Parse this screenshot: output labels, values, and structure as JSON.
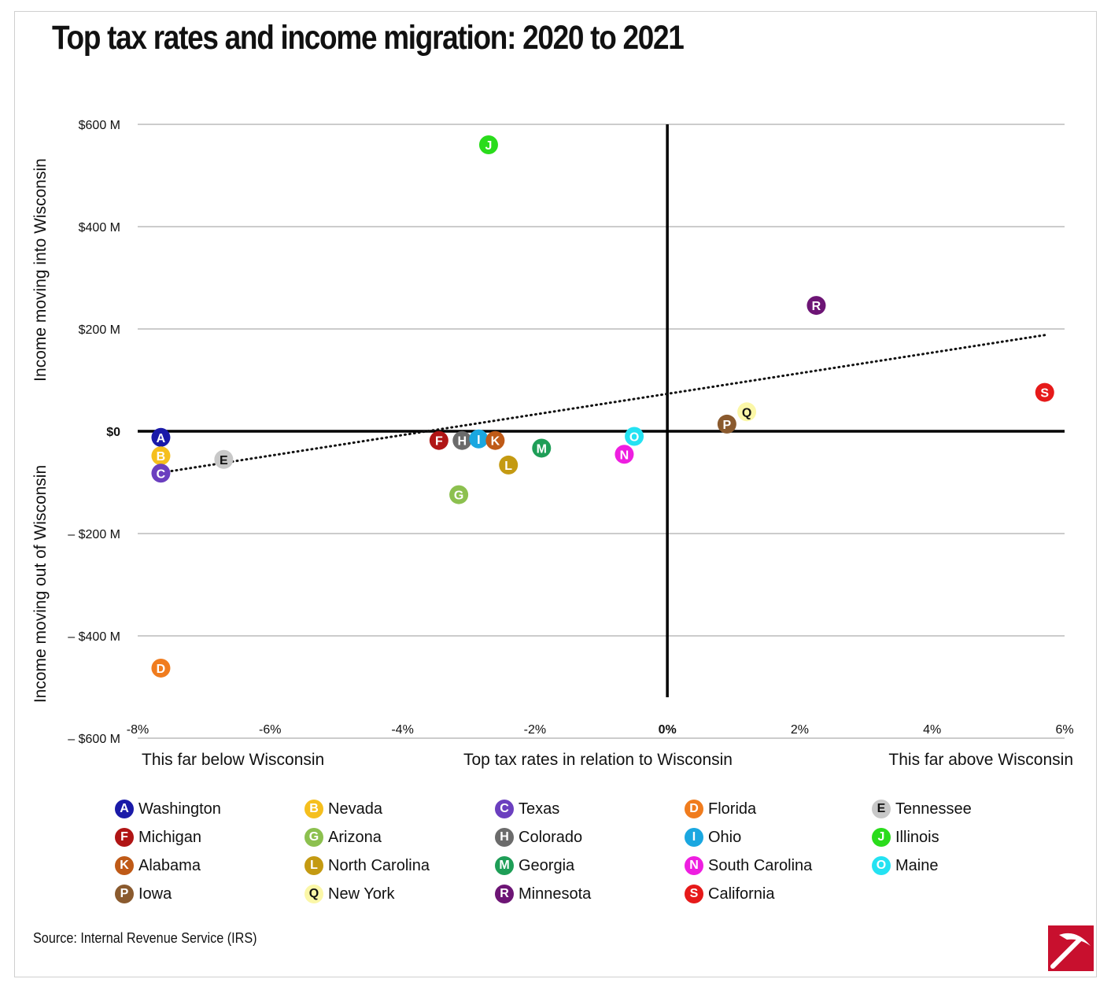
{
  "title": "Top tax rates and income migration: 2020 to 2021",
  "source": "Source: Internal Revenue Service (IRS)",
  "logo_icon": "pickaxe-logo-icon",
  "colors": {
    "accent_logo": "#c8102e",
    "grid": "#bbbbbb",
    "axis": "#000000"
  },
  "chart_data": {
    "type": "scatter",
    "xlabel": "Top tax rates in relation to Wisconsin",
    "xlabel_left": "This far below Wisconsin",
    "xlabel_right": "This far above Wisconsin",
    "ylabel_top": "Income moving into Wisconsin",
    "ylabel_bottom": "Income moving out of Wisconsin",
    "xlim": [
      -8,
      6
    ],
    "ylim": [
      -600,
      600
    ],
    "x_ticks": [
      -8,
      -6,
      -4,
      -2,
      0,
      2,
      4,
      6
    ],
    "x_tick_labels": [
      "-8%",
      "-6%",
      "-4%",
      "-2%",
      "0%",
      "2%",
      "4%",
      "6%"
    ],
    "y_ticks": [
      600,
      400,
      200,
      0,
      -200,
      -400,
      -600
    ],
    "y_tick_labels": [
      "$600 M",
      "$400 M",
      "$200 M",
      "$0",
      "– $200 M",
      "– $400 M",
      "– $600 M"
    ],
    "grid": "horizontal",
    "trendline": {
      "style": "dotted",
      "x": [
        -7.7,
        5.7
      ],
      "y": [
        -82,
        188
      ]
    },
    "points": [
      {
        "letter": "A",
        "state": "Washington",
        "x": -7.65,
        "y": -12,
        "color": "#1a1aa8"
      },
      {
        "letter": "B",
        "state": "Nevada",
        "x": -7.65,
        "y": -48,
        "color": "#f5bf1e"
      },
      {
        "letter": "C",
        "state": "Texas",
        "x": -7.65,
        "y": -82,
        "color": "#6b3fbf"
      },
      {
        "letter": "D",
        "state": "Florida",
        "x": -7.65,
        "y": -463,
        "color": "#f07c1e"
      },
      {
        "letter": "E",
        "state": "Tennessee",
        "x": -6.7,
        "y": -55,
        "color": "#c8c8c8"
      },
      {
        "letter": "F",
        "state": "Michigan",
        "x": -3.45,
        "y": -18,
        "color": "#b01515"
      },
      {
        "letter": "G",
        "state": "Arizona",
        "x": -3.15,
        "y": -124,
        "color": "#8cc04f"
      },
      {
        "letter": "H",
        "state": "Colorado",
        "x": -3.1,
        "y": -18,
        "color": "#6b6b6b"
      },
      {
        "letter": "I",
        "state": "Ohio",
        "x": -2.85,
        "y": -15,
        "color": "#1aa7e0"
      },
      {
        "letter": "J",
        "state": "Illinois",
        "x": -2.7,
        "y": 560,
        "color": "#2adc1c"
      },
      {
        "letter": "K",
        "state": "Alabama",
        "x": -2.6,
        "y": -18,
        "color": "#bf5a17"
      },
      {
        "letter": "L",
        "state": "North Carolina",
        "x": -2.4,
        "y": -66,
        "color": "#c49a12"
      },
      {
        "letter": "M",
        "state": "Georgia",
        "x": -1.9,
        "y": -33,
        "color": "#1e9e57"
      },
      {
        "letter": "N",
        "state": "South Carolina",
        "x": -0.65,
        "y": -45,
        "color": "#ee1ee0"
      },
      {
        "letter": "O",
        "state": "Maine",
        "x": -0.5,
        "y": -10,
        "color": "#24e2f2"
      },
      {
        "letter": "P",
        "state": "Iowa",
        "x": 0.9,
        "y": 14,
        "color": "#8a5a2e"
      },
      {
        "letter": "Q",
        "state": "New York",
        "x": 1.2,
        "y": 38,
        "color": "#fbf7a8"
      },
      {
        "letter": "R",
        "state": "Minnesota",
        "x": 2.25,
        "y": 246,
        "color": "#6d1575"
      },
      {
        "letter": "S",
        "state": "California",
        "x": 5.7,
        "y": 76,
        "color": "#e61a1a"
      }
    ]
  },
  "legend": [
    {
      "letter": "A",
      "state": "Washington",
      "color": "#1a1aa8"
    },
    {
      "letter": "B",
      "state": "Nevada",
      "color": "#f5bf1e"
    },
    {
      "letter": "C",
      "state": "Texas",
      "color": "#6b3fbf"
    },
    {
      "letter": "D",
      "state": "Florida",
      "color": "#f07c1e"
    },
    {
      "letter": "E",
      "state": "Tennessee",
      "color": "#c8c8c8"
    },
    {
      "letter": "F",
      "state": "Michigan",
      "color": "#b01515"
    },
    {
      "letter": "G",
      "state": "Arizona",
      "color": "#8cc04f"
    },
    {
      "letter": "H",
      "state": "Colorado",
      "color": "#6b6b6b"
    },
    {
      "letter": "I",
      "state": "Ohio",
      "color": "#1aa7e0"
    },
    {
      "letter": "J",
      "state": "Illinois",
      "color": "#2adc1c"
    },
    {
      "letter": "K",
      "state": "Alabama",
      "color": "#bf5a17"
    },
    {
      "letter": "L",
      "state": "North Carolina",
      "color": "#c49a12"
    },
    {
      "letter": "M",
      "state": "Georgia",
      "color": "#1e9e57"
    },
    {
      "letter": "N",
      "state": "South Carolina",
      "color": "#ee1ee0"
    },
    {
      "letter": "O",
      "state": "Maine",
      "color": "#24e2f2"
    },
    {
      "letter": "P",
      "state": "Iowa",
      "color": "#8a5a2e"
    },
    {
      "letter": "Q",
      "state": "New York",
      "color": "#fbf7a8"
    },
    {
      "letter": "R",
      "state": "Minnesota",
      "color": "#6d1575"
    },
    {
      "letter": "S",
      "state": "California",
      "color": "#e61a1a"
    }
  ]
}
